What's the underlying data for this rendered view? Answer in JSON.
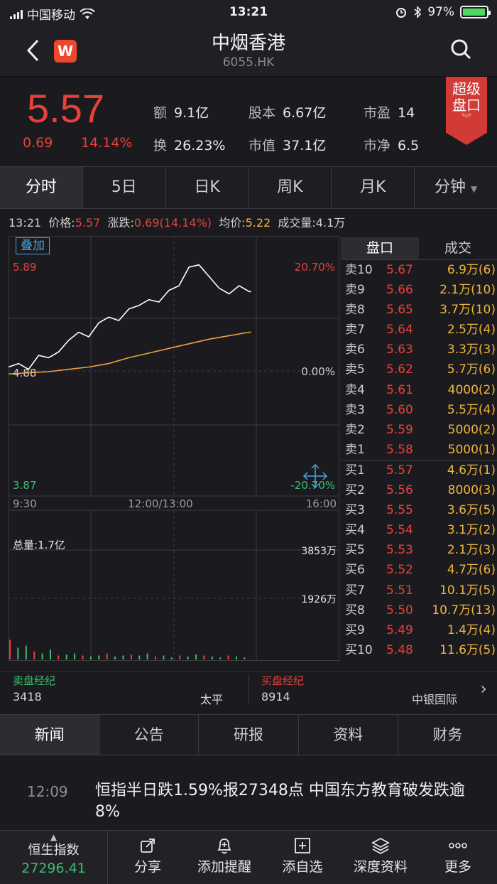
{
  "status_bar": {
    "carrier": "中国移动",
    "time": "13:21",
    "battery": "97%"
  },
  "header": {
    "title": "中烟香港",
    "code": "6055.HK",
    "logo_text": "W"
  },
  "quote": {
    "price": "5.57",
    "change": "0.69",
    "change_pct": "14.14%",
    "stats": [
      {
        "k": "额",
        "v": "9.1亿"
      },
      {
        "k": "股本",
        "v": "6.67亿"
      },
      {
        "k": "市盈",
        "v": "14"
      },
      {
        "k": "换",
        "v": "26.23%"
      },
      {
        "k": "市值",
        "v": "37.1亿"
      },
      {
        "k": "市净",
        "v": "6.5"
      }
    ],
    "super_box": [
      "超级",
      "盘口"
    ]
  },
  "period_tabs": [
    "分时",
    "5日",
    "日K",
    "周K",
    "月K",
    "分钟"
  ],
  "info_line": {
    "time": "13:21",
    "price_label": "价格:",
    "price": "5.57",
    "change_label": "涨跌:",
    "change": "0.69(14.14%)",
    "avg_label": "均价:",
    "avg": "5.22",
    "vol_label": "成交量:",
    "vol": "4.1万"
  },
  "chart": {
    "overlay_label": "叠加",
    "price_high": "5.89",
    "price_mid": "4.88",
    "price_low": "3.87",
    "pct_high": "20.70%",
    "pct_mid": "0.00%",
    "pct_low": "-20.70%",
    "time_start": "9:30",
    "time_mid": "12:00/13:00",
    "time_end": "16:00",
    "total_vol": "总量:1.7亿",
    "vol_high": "3853万",
    "vol_mid": "1926万",
    "line_color": "#ffffff",
    "avg_color": "#f0a040"
  },
  "chart_data": {
    "type": "line",
    "series": [
      {
        "name": "价格",
        "x": [
          0,
          10,
          20,
          30,
          40,
          50,
          60,
          70,
          80,
          90,
          100,
          110,
          120,
          130,
          140,
          150,
          160,
          170,
          180,
          190,
          200,
          210,
          220,
          230,
          240,
          242
        ],
        "values": [
          4.92,
          4.95,
          4.9,
          5.02,
          5.0,
          5.05,
          5.15,
          5.22,
          5.18,
          5.3,
          5.35,
          5.32,
          5.42,
          5.45,
          5.5,
          5.48,
          5.58,
          5.62,
          5.78,
          5.8,
          5.7,
          5.6,
          5.55,
          5.62,
          5.57,
          5.57
        ]
      },
      {
        "name": "均价",
        "x": [
          0,
          20,
          40,
          60,
          80,
          100,
          120,
          140,
          160,
          180,
          200,
          220,
          240,
          242
        ],
        "values": [
          4.86,
          4.87,
          4.88,
          4.9,
          4.92,
          4.95,
          5.0,
          5.04,
          5.08,
          5.12,
          5.16,
          5.19,
          5.22,
          5.22
        ]
      }
    ],
    "ylim": [
      3.87,
      5.89
    ],
    "xlim": [
      0,
      330
    ],
    "volume": [
      1.0,
      0.6,
      0.7,
      0.4,
      0.3,
      0.5,
      0.2,
      0.25,
      0.3,
      0.2,
      0.15,
      0.2,
      0.3,
      0.15,
      0.2,
      0.25,
      0.2,
      0.3,
      0.15,
      0.2,
      0.1,
      0.2,
      0.15,
      0.25,
      0.2,
      0.15,
      0.1,
      0.2,
      0.15,
      0.1
    ],
    "vol_max": "3853万"
  },
  "order_book": {
    "tabs": [
      "盘口",
      "成交"
    ],
    "asks": [
      {
        "label": "卖10",
        "price": "5.67",
        "vol": "6.9万(6)"
      },
      {
        "label": "卖9",
        "price": "5.66",
        "vol": "2.1万(10)"
      },
      {
        "label": "卖8",
        "price": "5.65",
        "vol": "3.7万(10)"
      },
      {
        "label": "卖7",
        "price": "5.64",
        "vol": "2.5万(4)"
      },
      {
        "label": "卖6",
        "price": "5.63",
        "vol": "3.3万(3)"
      },
      {
        "label": "卖5",
        "price": "5.62",
        "vol": "5.7万(6)"
      },
      {
        "label": "卖4",
        "price": "5.61",
        "vol": "4000(2)"
      },
      {
        "label": "卖3",
        "price": "5.60",
        "vol": "5.5万(4)"
      },
      {
        "label": "卖2",
        "price": "5.59",
        "vol": "5000(2)"
      },
      {
        "label": "卖1",
        "price": "5.58",
        "vol": "5000(1)"
      }
    ],
    "bids": [
      {
        "label": "买1",
        "price": "5.57",
        "vol": "4.6万(1)"
      },
      {
        "label": "买2",
        "price": "5.56",
        "vol": "8000(3)"
      },
      {
        "label": "买3",
        "price": "5.55",
        "vol": "3.6万(5)"
      },
      {
        "label": "买4",
        "price": "5.54",
        "vol": "3.1万(2)"
      },
      {
        "label": "买5",
        "price": "5.53",
        "vol": "2.1万(3)"
      },
      {
        "label": "买6",
        "price": "5.52",
        "vol": "4.7万(6)"
      },
      {
        "label": "买7",
        "price": "5.51",
        "vol": "10.1万(5)"
      },
      {
        "label": "买8",
        "price": "5.50",
        "vol": "10.7万(13)"
      },
      {
        "label": "买9",
        "price": "5.49",
        "vol": "1.4万(4)"
      },
      {
        "label": "买10",
        "price": "5.48",
        "vol": "11.6万(5)"
      }
    ]
  },
  "brokers": {
    "sell_label": "卖盘经纪",
    "sell_id": "3418",
    "sell_name": "太平",
    "buy_label": "买盘经纪",
    "buy_id": "8914",
    "buy_name": "中银国际"
  },
  "news_tabs": [
    "新闻",
    "公告",
    "研报",
    "资料",
    "财务"
  ],
  "news": [
    {
      "time": "12:09",
      "headline": "恒指半日跌1.59%报27348点 中国东方教育破发跌逾8%"
    }
  ],
  "bottom": {
    "index_name": "恒生指数",
    "index_value": "27296.41",
    "buttons": [
      {
        "label": "分享",
        "icon": "share-icon"
      },
      {
        "label": "添加提醒",
        "icon": "bell-icon"
      },
      {
        "label": "添自选",
        "icon": "add-icon"
      },
      {
        "label": "深度资料",
        "icon": "layers-icon"
      },
      {
        "label": "更多",
        "icon": "more-icon"
      }
    ]
  },
  "colors": {
    "up": "#e8413a",
    "down": "#39c070",
    "accent": "#4aa3df",
    "yellow": "#f0b43a"
  }
}
